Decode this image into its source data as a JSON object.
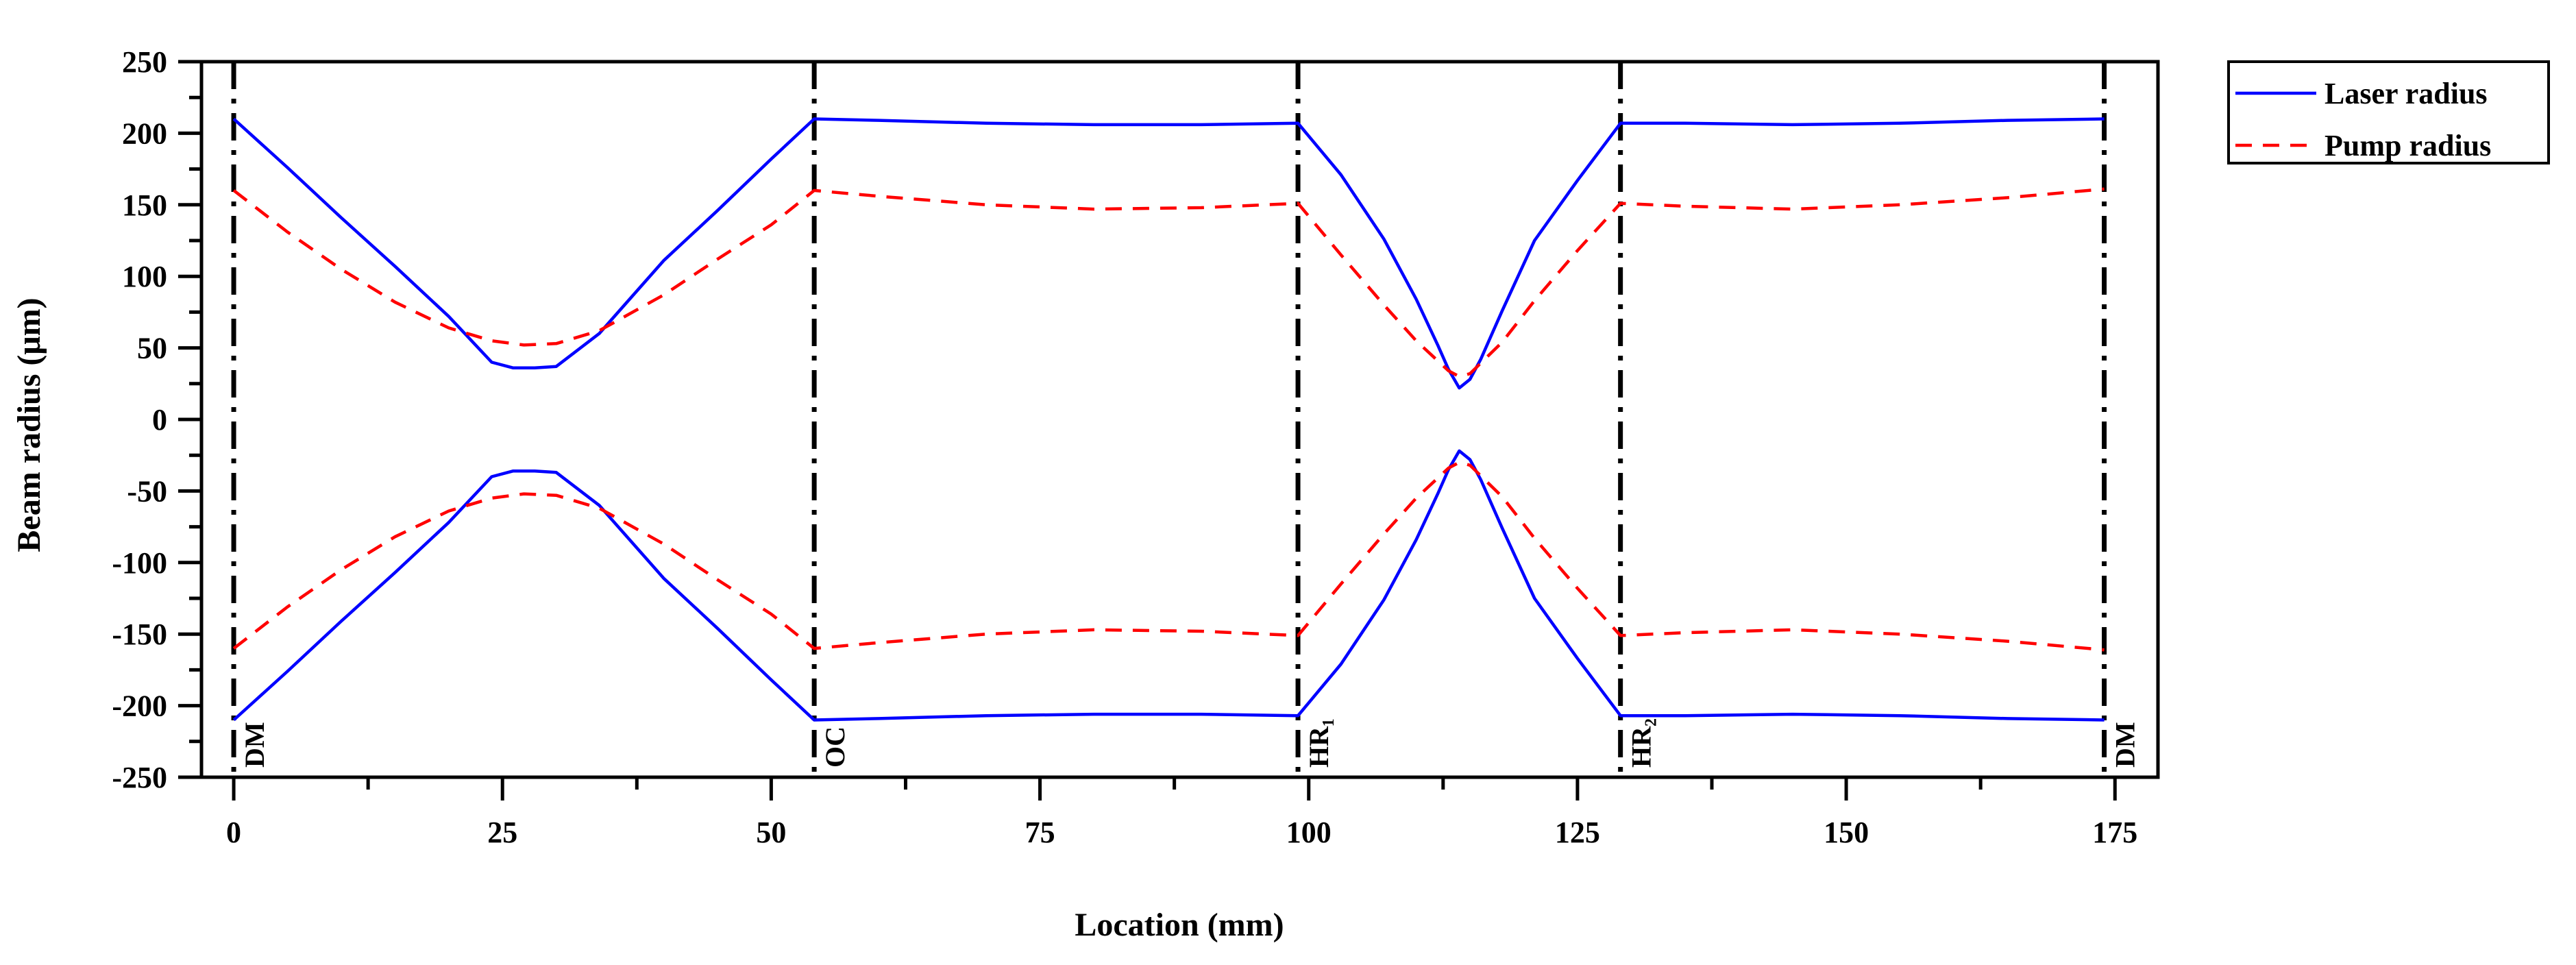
{
  "chart_data": {
    "type": "line",
    "title": "",
    "xlabel": "Location (mm)",
    "ylabel": "Beam radius (μm)",
    "xlim": [
      -3,
      179
    ],
    "ylim": [
      -250,
      250
    ],
    "x_ticks": [
      0,
      25,
      50,
      75,
      100,
      125,
      150,
      175
    ],
    "y_ticks": [
      250,
      200,
      150,
      100,
      50,
      0,
      -50,
      -100,
      -150,
      -200,
      -250
    ],
    "grid": false,
    "legend_position": "top-right, outside plot",
    "series": [
      {
        "name": "Laser radius",
        "color": "#0000ff",
        "style": "solid",
        "x": [
          0,
          5,
          10,
          15,
          20,
          24,
          26,
          28,
          30,
          34,
          40,
          45,
          50,
          54,
          60,
          70,
          80,
          90,
          99,
          103,
          107,
          110,
          112,
          113,
          114,
          115,
          116,
          118,
          121,
          125,
          129,
          135,
          145,
          155,
          165,
          174
        ],
        "y": [
          210,
          176,
          141,
          107,
          72,
          40,
          36,
          36,
          37,
          60,
          111,
          146,
          182,
          210,
          209,
          207,
          206,
          206,
          207,
          171,
          126,
          84,
          52,
          35,
          22,
          28,
          42,
          76,
          125,
          167,
          207,
          207,
          206,
          207,
          209,
          210
        ]
      },
      {
        "name": "",
        "color": "#0000ff",
        "style": "solid",
        "x": [
          0,
          5,
          10,
          15,
          20,
          24,
          26,
          28,
          30,
          34,
          40,
          45,
          50,
          54,
          60,
          70,
          80,
          90,
          99,
          103,
          107,
          110,
          112,
          113,
          114,
          115,
          116,
          118,
          121,
          125,
          129,
          135,
          145,
          155,
          165,
          174
        ],
        "y": [
          -210,
          -176,
          -141,
          -107,
          -72,
          -40,
          -36,
          -36,
          -37,
          -60,
          -111,
          -146,
          -182,
          -210,
          -209,
          -207,
          -206,
          -206,
          -207,
          -171,
          -126,
          -84,
          -52,
          -35,
          -22,
          -28,
          -42,
          -76,
          -125,
          -167,
          -207,
          -207,
          -206,
          -207,
          -209,
          -210
        ]
      },
      {
        "name": "Pump radius",
        "color": "#ff0000",
        "style": "dashed",
        "x": [
          0,
          5,
          10,
          15,
          20,
          24,
          27,
          30,
          34,
          40,
          45,
          50,
          54,
          60,
          70,
          80,
          90,
          99,
          103,
          107,
          110,
          113,
          114,
          115,
          118,
          121,
          125,
          129,
          135,
          145,
          155,
          165,
          174
        ],
        "y": [
          160,
          131,
          105,
          82,
          64,
          55,
          52,
          53,
          62,
          87,
          112,
          136,
          160,
          156,
          150,
          147,
          148,
          151,
          115,
          80,
          55,
          34,
          30,
          32,
          54,
          83,
          118,
          151,
          149,
          147,
          150,
          155,
          161
        ]
      },
      {
        "name": "",
        "color": "#ff0000",
        "style": "dashed",
        "x": [
          0,
          5,
          10,
          15,
          20,
          24,
          27,
          30,
          34,
          40,
          45,
          50,
          54,
          60,
          70,
          80,
          90,
          99,
          103,
          107,
          110,
          113,
          114,
          115,
          118,
          121,
          125,
          129,
          135,
          145,
          155,
          165,
          174
        ],
        "y": [
          -160,
          -131,
          -105,
          -82,
          -64,
          -55,
          -52,
          -53,
          -62,
          -87,
          -112,
          -136,
          -160,
          -156,
          -150,
          -147,
          -148,
          -151,
          -115,
          -80,
          -55,
          -34,
          -30,
          -32,
          -54,
          -83,
          -118,
          -151,
          -149,
          -147,
          -150,
          -155,
          -161
        ]
      }
    ],
    "vertical_markers": [
      {
        "x": 0,
        "label": "DM"
      },
      {
        "x": 54,
        "label": "OC"
      },
      {
        "x": 99,
        "label": "HR₁"
      },
      {
        "x": 129,
        "label": "HR₂"
      },
      {
        "x": 174,
        "label": "DM"
      }
    ]
  }
}
